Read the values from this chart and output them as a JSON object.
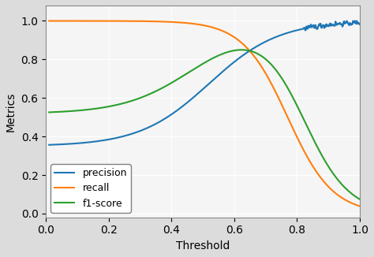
{
  "title": "",
  "xlabel": "Threshold",
  "ylabel": "Metrics",
  "xlim": [
    0.0,
    1.0
  ],
  "ylim": [
    -0.02,
    1.08
  ],
  "grid": true,
  "legend_labels": [
    "precision",
    "recall",
    "f1-score"
  ],
  "legend_loc": "lower left",
  "precision_color": "#1f77b4",
  "recall_color": "#ff7f0e",
  "f1_color": "#2ca02c",
  "fig_facecolor": "#dcdcdc",
  "ax_facecolor": "#f5f5f5",
  "figsize": [
    4.74,
    3.26
  ],
  "dpi": 100
}
